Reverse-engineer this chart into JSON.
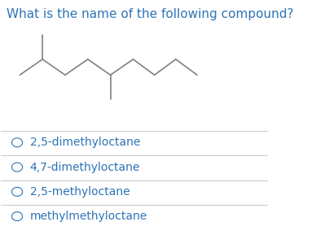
{
  "question": "What is the name of the following compound?",
  "question_color": "#2e74b5",
  "question_fontsize": 11,
  "options": [
    "2,5-dimethyloctane",
    "4,7-dimethyloctane",
    "2,5-methyloctane",
    "methylmethyloctane"
  ],
  "option_color": "#2e74b5",
  "option_fontsize": 10,
  "background_color": "#ffffff",
  "line_color": "#808080",
  "separator_color": "#cccccc"
}
